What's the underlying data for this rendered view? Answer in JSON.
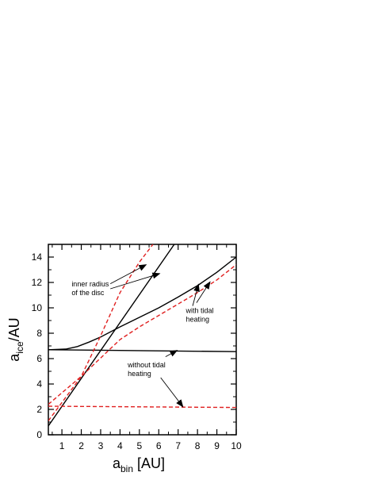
{
  "chart_data": {
    "type": "line",
    "xlabel": {
      "main": "a",
      "sub": "bin",
      "rest": " [AU]"
    },
    "ylabel": {
      "main": "a",
      "sub": "ice",
      "rest": "/AU"
    },
    "xlim": [
      0.3,
      10
    ],
    "ylim": [
      0,
      15
    ],
    "x_ticks": [
      1,
      2,
      3,
      4,
      5,
      6,
      7,
      8,
      9,
      10
    ],
    "y_ticks": [
      0,
      2,
      4,
      6,
      8,
      10,
      12,
      14
    ],
    "grid": false,
    "colors": {
      "solid": "#000000",
      "dashed": "#e02020"
    },
    "series": [
      {
        "style": "solid",
        "x": [
          0.3,
          6.8
        ],
        "y": [
          0.7,
          15.0
        ]
      },
      {
        "style": "solid",
        "x": [
          0.3,
          1.2,
          1.8,
          2.4,
          3.0,
          4.0,
          5.0,
          6.0,
          7.0,
          8.0,
          9.0,
          10.0
        ],
        "y": [
          6.7,
          6.75,
          6.95,
          7.3,
          7.7,
          8.5,
          9.25,
          10.0,
          10.85,
          11.75,
          12.8,
          14.0
        ]
      },
      {
        "style": "solid",
        "x": [
          0.3,
          10.0
        ],
        "y": [
          6.7,
          6.55
        ]
      },
      {
        "style": "dashed",
        "x": [
          0.3,
          2.0,
          3.0,
          4.0,
          5.0,
          5.7
        ],
        "y": [
          1.1,
          4.6,
          7.8,
          11.2,
          13.6,
          15.0
        ]
      },
      {
        "style": "dashed",
        "x": [
          0.3,
          2.0,
          3.0,
          4.0,
          5.0,
          6.0,
          7.0,
          8.0,
          9.0,
          10.0
        ],
        "y": [
          2.4,
          4.6,
          6.05,
          7.5,
          8.5,
          9.4,
          10.3,
          11.2,
          12.2,
          13.4
        ]
      },
      {
        "style": "dashed",
        "x": [
          0.3,
          10.0
        ],
        "y": [
          2.25,
          2.15
        ]
      }
    ],
    "annotations": [
      {
        "id": "inner",
        "lines": [
          "inner radius",
          "of the disc"
        ],
        "x": 1.5,
        "y": 11.7,
        "arrows": [
          {
            "from": [
              3.5,
              11.9
            ],
            "to": [
              5.35,
              13.4
            ]
          },
          {
            "from": [
              3.5,
              11.5
            ],
            "to": [
              6.05,
              12.7
            ]
          }
        ]
      },
      {
        "id": "with",
        "lines": [
          "with tidal",
          "heating"
        ],
        "x": 7.4,
        "y": 9.6,
        "arrows": [
          {
            "from": [
              7.75,
              10.15
            ],
            "to": [
              8.05,
              11.85
            ]
          },
          {
            "from": [
              7.95,
              10.4
            ],
            "to": [
              8.65,
              12.05
            ]
          }
        ]
      },
      {
        "id": "without",
        "lines": [
          "without tidal",
          "heating"
        ],
        "x": 4.4,
        "y": 5.3,
        "arrows": [
          {
            "from": [
              6.35,
              6.15
            ],
            "to": [
              6.95,
              6.65
            ]
          },
          {
            "from": [
              6.1,
              4.5
            ],
            "to": [
              7.25,
              2.2
            ]
          }
        ]
      }
    ]
  }
}
